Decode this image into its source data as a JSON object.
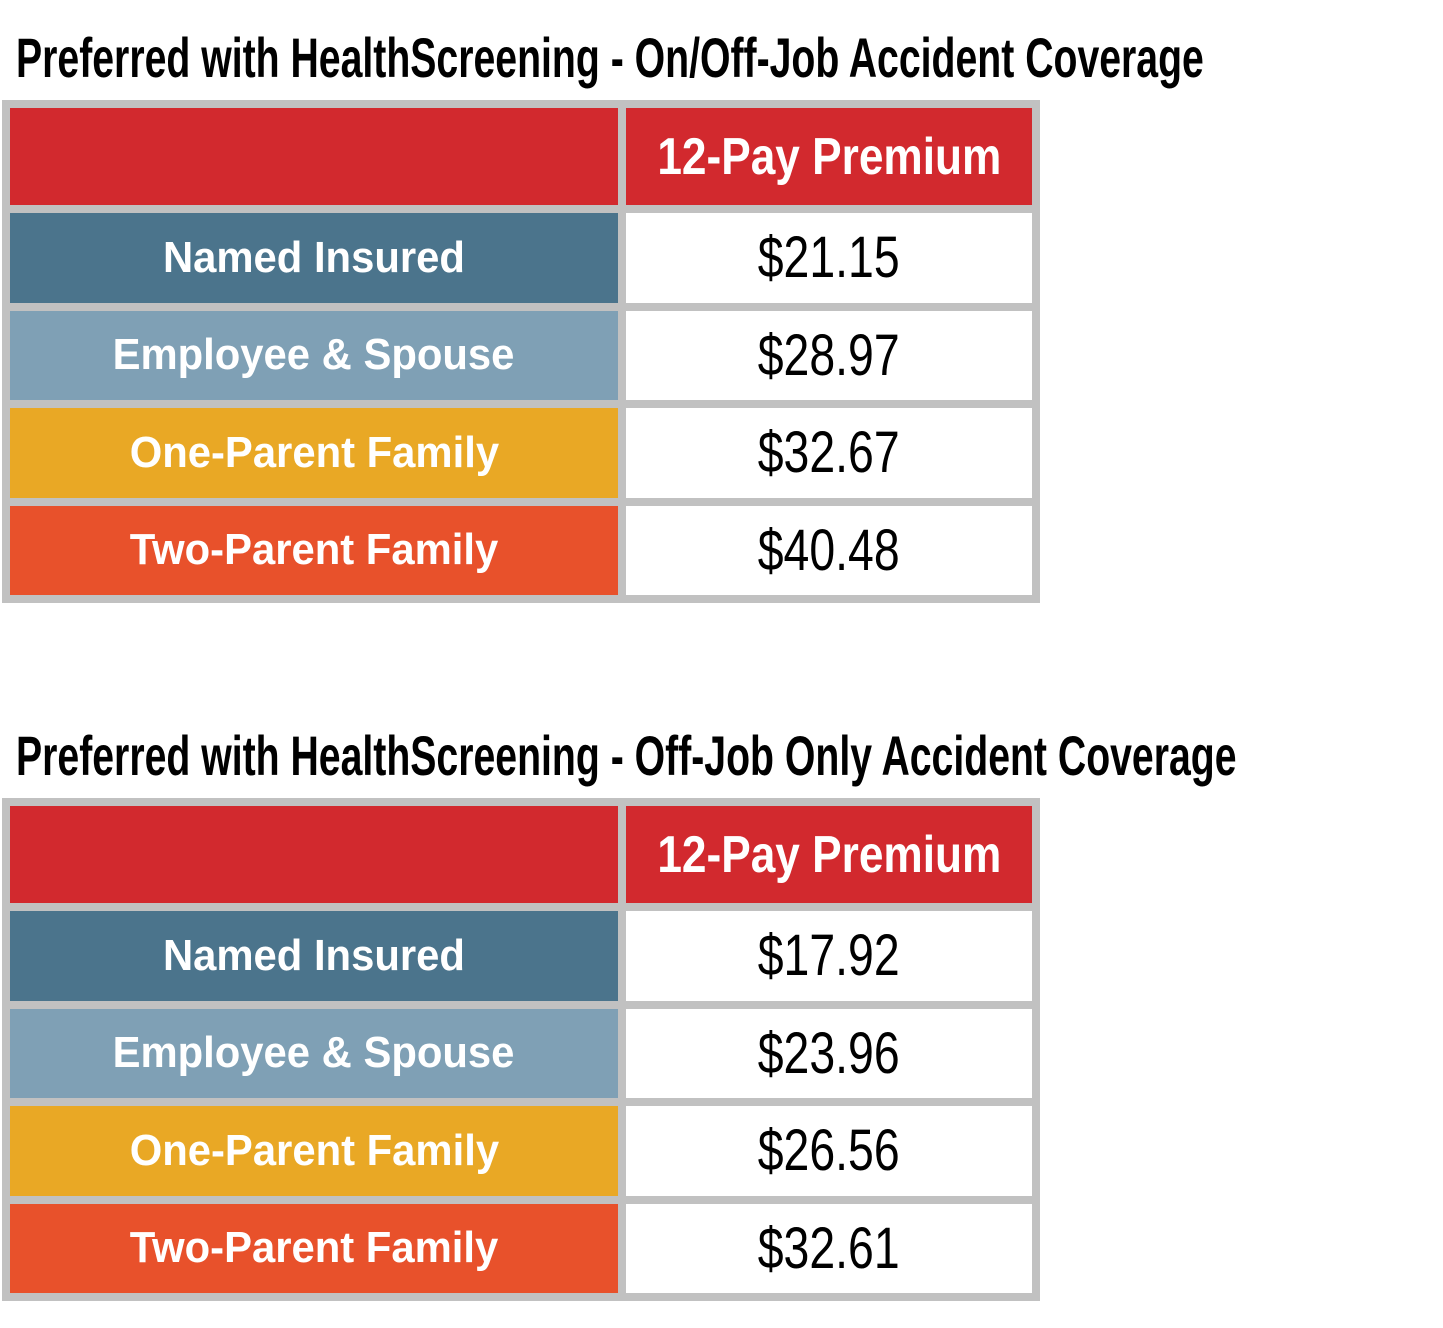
{
  "document": {
    "colors": {
      "header_red": "#D2292E",
      "table_frame_gray": "#C1C1C1",
      "row_dark_blue": "#4B748C",
      "row_light_blue": "#7FA0B5",
      "row_gold": "#E9A825",
      "row_orange": "#E8512B"
    },
    "tables": [
      {
        "title": "Preferred with HealthScreening - On/Off-Job Accident Coverage",
        "header": {
          "label_col": "",
          "premium_col": "12-Pay Premium"
        },
        "rows": [
          {
            "label": "Named Insured",
            "value": "$21.15",
            "color": "#4B748C"
          },
          {
            "label": "Employee & Spouse",
            "value": "$28.97",
            "color": "#7FA0B5"
          },
          {
            "label": "One-Parent Family",
            "value": "$32.67",
            "color": "#E9A825"
          },
          {
            "label": "Two-Parent Family",
            "value": "$40.48",
            "color": "#E8512B"
          }
        ]
      },
      {
        "title": "Preferred with HealthScreening - Off-Job Only Accident Coverage",
        "header": {
          "label_col": "",
          "premium_col": "12-Pay Premium"
        },
        "rows": [
          {
            "label": "Named Insured",
            "value": "$17.92",
            "color": "#4B748C"
          },
          {
            "label": "Employee & Spouse",
            "value": "$23.96",
            "color": "#7FA0B5"
          },
          {
            "label": "One-Parent Family",
            "value": "$26.56",
            "color": "#E9A825"
          },
          {
            "label": "Two-Parent Family",
            "value": "$32.61",
            "color": "#E8512B"
          }
        ]
      }
    ]
  }
}
